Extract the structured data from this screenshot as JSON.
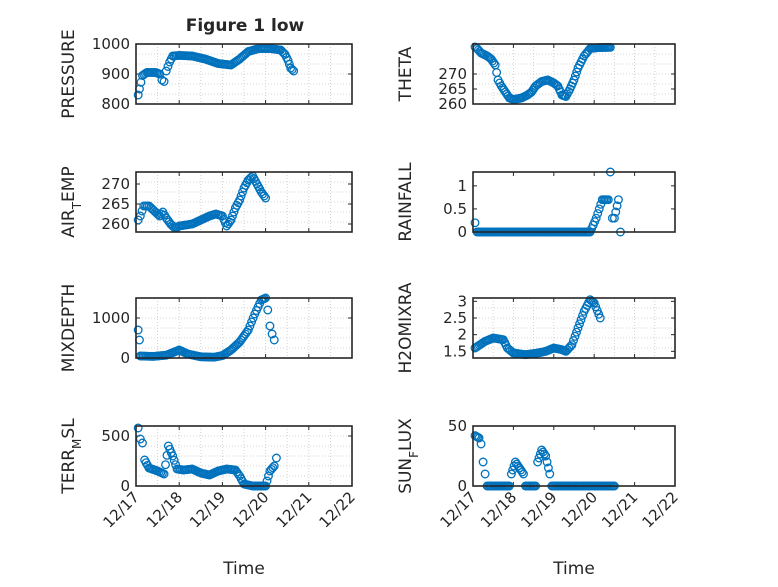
{
  "figure_title": "Figure 1 low",
  "colors": {
    "marker": "#0072BD",
    "axis": "#262626",
    "grid": "#c8c8c8",
    "background": "#ffffff"
  },
  "chart_data": [
    {
      "type": "scatter",
      "title": "Figure 1 low",
      "ylabel": "PRESSURE",
      "ylabel_parts": [
        {
          "t": "PRESSURE",
          "s": "n"
        }
      ],
      "xlabel": "",
      "xlim": [
        0,
        5
      ],
      "ylim": [
        800,
        1000
      ],
      "yticks": [
        800,
        900,
        1000
      ],
      "yticklabels": [
        "800",
        "900",
        "1000"
      ],
      "xticklabels": [],
      "grid": true,
      "segments": [
        [
          0.05,
          830
        ],
        [
          0.08,
          850
        ],
        [
          0.15,
          895
        ],
        [
          0.25,
          905
        ],
        [
          0.45,
          905
        ],
        [
          0.55,
          900
        ],
        [
          0.6,
          880
        ],
        [
          0.65,
          875
        ],
        [
          0.7,
          910
        ],
        [
          0.78,
          940
        ],
        [
          0.85,
          960
        ],
        [
          1.0,
          962
        ],
        [
          1.3,
          960
        ],
        [
          1.6,
          950
        ],
        [
          1.9,
          935
        ],
        [
          2.2,
          930
        ],
        [
          2.4,
          950
        ],
        [
          2.6,
          975
        ],
        [
          2.85,
          985
        ],
        [
          3.1,
          985
        ],
        [
          3.35,
          980
        ],
        [
          3.45,
          965
        ],
        [
          3.52,
          945
        ],
        [
          3.58,
          920
        ],
        [
          3.65,
          910
        ]
      ]
    },
    {
      "type": "scatter",
      "ylabel": "THETA",
      "ylabel_parts": [
        {
          "t": "THETA",
          "s": "n"
        }
      ],
      "xlabel": "",
      "xlim": [
        0,
        5
      ],
      "ylim": [
        260,
        280
      ],
      "yticks": [
        260,
        265,
        270
      ],
      "yticklabels": [
        "260",
        "265",
        "270"
      ],
      "xticklabels": [],
      "grid": true,
      "segments": [
        [
          0.05,
          279
        ],
        [
          0.1,
          278.5
        ],
        [
          0.2,
          277
        ],
        [
          0.35,
          276
        ],
        [
          0.45,
          275
        ],
        [
          0.55,
          273
        ],
        [
          0.62,
          268
        ],
        [
          0.7,
          266
        ],
        [
          0.8,
          264
        ],
        [
          0.9,
          262
        ],
        [
          1.0,
          261.5
        ],
        [
          1.2,
          262
        ],
        [
          1.35,
          263
        ],
        [
          1.45,
          264
        ],
        [
          1.55,
          266
        ],
        [
          1.7,
          267.5
        ],
        [
          1.85,
          268
        ],
        [
          2.0,
          267
        ],
        [
          2.1,
          266
        ],
        [
          2.2,
          263
        ],
        [
          2.3,
          262.5
        ],
        [
          2.4,
          265
        ],
        [
          2.5,
          268
        ],
        [
          2.6,
          272
        ],
        [
          2.75,
          276
        ],
        [
          2.9,
          278.5
        ],
        [
          3.1,
          278.8
        ],
        [
          3.4,
          278.9
        ]
      ]
    },
    {
      "type": "scatter",
      "ylabel": "AIR_TEMP",
      "ylabel_parts": [
        {
          "t": "AIR",
          "s": "n"
        },
        {
          "t": "T",
          "s": "sub"
        },
        {
          "t": "EMP",
          "s": "n"
        }
      ],
      "xlabel": "",
      "xlim": [
        0,
        5
      ],
      "ylim": [
        258,
        273
      ],
      "yticks": [
        260,
        265,
        270
      ],
      "yticklabels": [
        "260",
        "265",
        "270"
      ],
      "xticklabels": [],
      "grid": true,
      "segments": [
        [
          0.05,
          261
        ],
        [
          0.1,
          262
        ],
        [
          0.18,
          264.5
        ],
        [
          0.3,
          264.5
        ],
        [
          0.45,
          263
        ],
        [
          0.55,
          262
        ],
        [
          0.62,
          263
        ],
        [
          0.7,
          261.5
        ],
        [
          0.8,
          260
        ],
        [
          0.9,
          259
        ],
        [
          1.0,
          259.5
        ],
        [
          1.3,
          260
        ],
        [
          1.5,
          261
        ],
        [
          1.7,
          262
        ],
        [
          1.85,
          262.5
        ],
        [
          2.0,
          262
        ],
        [
          2.1,
          259.5
        ],
        [
          2.2,
          261
        ],
        [
          2.3,
          264
        ],
        [
          2.4,
          266
        ],
        [
          2.5,
          269
        ],
        [
          2.6,
          271
        ],
        [
          2.7,
          272
        ],
        [
          2.8,
          270
        ],
        [
          2.9,
          268
        ],
        [
          3.0,
          266.5
        ]
      ]
    },
    {
      "type": "scatter",
      "ylabel": "RAINFALL",
      "ylabel_parts": [
        {
          "t": "RAINFALL",
          "s": "n"
        }
      ],
      "xlabel": "",
      "xlim": [
        0,
        5
      ],
      "ylim": [
        0,
        1.3
      ],
      "yticks": [
        0,
        0.5,
        1
      ],
      "yticklabels": [
        "0",
        "0.5",
        "1"
      ],
      "xticklabels": [],
      "grid": false,
      "segments": [
        [
          0.05,
          0.2
        ],
        [
          0.1,
          0
        ],
        [
          1.0,
          0
        ],
        [
          2.0,
          0
        ],
        [
          2.9,
          0
        ],
        [
          3.05,
          0.3
        ],
        [
          3.2,
          0.7
        ],
        [
          3.35,
          0.7
        ],
        [
          3.4,
          1.3
        ],
        [
          3.45,
          0.3
        ],
        [
          3.5,
          0.3
        ],
        [
          3.6,
          0.7
        ],
        [
          3.65,
          0
        ]
      ]
    },
    {
      "type": "scatter",
      "ylabel": "MIXDEPTH",
      "ylabel_parts": [
        {
          "t": "MIXDEPTH",
          "s": "n"
        }
      ],
      "xlabel": "",
      "xlim": [
        0,
        5
      ],
      "ylim": [
        0,
        1500
      ],
      "yticks": [
        0,
        1000
      ],
      "yticklabels": [
        "0",
        "1000"
      ],
      "xticklabels": [],
      "grid": true,
      "segments": [
        [
          0.05,
          700
        ],
        [
          0.08,
          450
        ],
        [
          0.1,
          50
        ],
        [
          0.4,
          40
        ],
        [
          0.7,
          70
        ],
        [
          1.0,
          200
        ],
        [
          1.2,
          100
        ],
        [
          1.5,
          30
        ],
        [
          1.8,
          20
        ],
        [
          2.0,
          60
        ],
        [
          2.2,
          200
        ],
        [
          2.4,
          400
        ],
        [
          2.6,
          700
        ],
        [
          2.75,
          1100
        ],
        [
          2.9,
          1450
        ],
        [
          3.0,
          1500
        ],
        [
          3.05,
          1200
        ],
        [
          3.1,
          800
        ],
        [
          3.15,
          600
        ],
        [
          3.2,
          450
        ]
      ]
    },
    {
      "type": "scatter",
      "ylabel": "H2OMIXRA",
      "ylabel_parts": [
        {
          "t": "H2OMIXRA",
          "s": "n"
        }
      ],
      "xlabel": "",
      "xlim": [
        0,
        5
      ],
      "ylim": [
        1.3,
        3.1
      ],
      "yticks": [
        1.5,
        2,
        2.5,
        3
      ],
      "yticklabels": [
        "1.5",
        "2",
        "2.5",
        "3"
      ],
      "xticklabels": [],
      "grid": true,
      "segments": [
        [
          0.05,
          1.6
        ],
        [
          0.3,
          1.8
        ],
        [
          0.5,
          1.9
        ],
        [
          0.75,
          1.85
        ],
        [
          0.85,
          1.6
        ],
        [
          1.0,
          1.45
        ],
        [
          1.3,
          1.4
        ],
        [
          1.6,
          1.45
        ],
        [
          1.8,
          1.5
        ],
        [
          2.0,
          1.6
        ],
        [
          2.2,
          1.55
        ],
        [
          2.3,
          1.5
        ],
        [
          2.45,
          1.7
        ],
        [
          2.6,
          2.2
        ],
        [
          2.75,
          2.7
        ],
        [
          2.9,
          3.05
        ],
        [
          3.0,
          2.95
        ],
        [
          3.15,
          2.5
        ]
      ]
    },
    {
      "type": "scatter",
      "ylabel": "TERR_MSL",
      "ylabel_parts": [
        {
          "t": "TERR",
          "s": "n"
        },
        {
          "t": "M",
          "s": "sub"
        },
        {
          "t": "SL",
          "s": "n"
        }
      ],
      "xlabel": "Time",
      "xlim": [
        0,
        5
      ],
      "ylim": [
        0,
        600
      ],
      "yticks": [
        0,
        500
      ],
      "yticklabels": [
        "0",
        "500"
      ],
      "xticklabels": [
        "12/17",
        "12/18",
        "12/19",
        "12/20",
        "12/21",
        "12/22"
      ],
      "grid": true,
      "segments": [
        [
          0.05,
          580
        ],
        [
          0.1,
          470
        ],
        [
          0.15,
          430
        ],
        [
          0.2,
          260
        ],
        [
          0.3,
          180
        ],
        [
          0.5,
          150
        ],
        [
          0.65,
          120
        ],
        [
          0.75,
          400
        ],
        [
          0.85,
          300
        ],
        [
          0.95,
          170
        ],
        [
          1.1,
          160
        ],
        [
          1.3,
          170
        ],
        [
          1.5,
          130
        ],
        [
          1.7,
          110
        ],
        [
          1.9,
          150
        ],
        [
          2.1,
          170
        ],
        [
          2.3,
          160
        ],
        [
          2.4,
          100
        ],
        [
          2.5,
          20
        ],
        [
          2.7,
          0
        ],
        [
          3.0,
          0
        ],
        [
          3.1,
          150
        ],
        [
          3.2,
          200
        ],
        [
          3.25,
          280
        ]
      ]
    },
    {
      "type": "scatter",
      "ylabel": "SUN_FLUX",
      "ylabel_parts": [
        {
          "t": "SUN",
          "s": "n"
        },
        {
          "t": "F",
          "s": "sub"
        },
        {
          "t": "LUX",
          "s": "n"
        }
      ],
      "xlabel": "Time",
      "xlim": [
        0,
        5
      ],
      "ylim": [
        0,
        50
      ],
      "yticks": [
        0,
        50
      ],
      "yticklabels": [
        "0",
        "50"
      ],
      "xticklabels": [
        "12/17",
        "12/18",
        "12/19",
        "12/20",
        "12/21",
        "12/22"
      ],
      "grid": false,
      "segments": [
        [
          0.05,
          42
        ],
        [
          0.15,
          40
        ],
        [
          0.2,
          35
        ],
        [
          0.25,
          20
        ],
        [
          0.3,
          10
        ],
        [
          0.35,
          0
        ],
        [
          0.9,
          0
        ],
        [
          0.95,
          10
        ],
        [
          1.05,
          20
        ],
        [
          1.15,
          15
        ],
        [
          1.25,
          10
        ],
        [
          1.3,
          0
        ],
        [
          1.55,
          0
        ],
        [
          1.6,
          20
        ],
        [
          1.7,
          30
        ],
        [
          1.8,
          25
        ],
        [
          1.9,
          10
        ],
        [
          1.95,
          0
        ],
        [
          2.5,
          0
        ],
        [
          3.0,
          0
        ],
        [
          3.5,
          0
        ]
      ]
    }
  ]
}
